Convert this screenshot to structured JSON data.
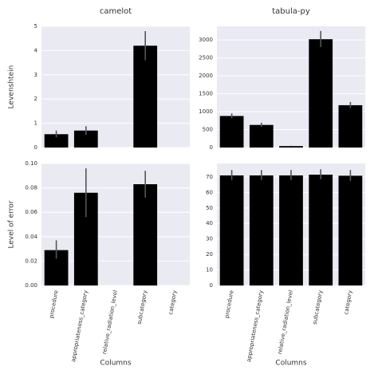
{
  "chart_data": [
    {
      "type": "bar",
      "title": "camelot",
      "ylabel": "Levenshtein",
      "values": [
        0.55,
        0.7,
        null,
        4.2,
        null
      ],
      "error_low": [
        0.42,
        0.52,
        null,
        3.6,
        null
      ],
      "error_high": [
        0.7,
        0.88,
        null,
        4.8,
        null
      ],
      "color": "#000000",
      "ylim": [
        0,
        5
      ],
      "yticks": [
        0,
        1,
        2,
        3,
        4,
        5
      ],
      "grid": true
    },
    {
      "type": "bar",
      "title": "tabula-py",
      "values": [
        880,
        630,
        40,
        3020,
        1180
      ],
      "error_low": [
        820,
        580,
        30,
        2800,
        1100
      ],
      "error_high": [
        950,
        690,
        50,
        3250,
        1270
      ],
      "color": "#000000",
      "ylim": [
        0,
        3380
      ],
      "yticks": [
        0,
        500,
        1000,
        1500,
        2000,
        2500,
        3000
      ],
      "grid": true
    },
    {
      "type": "bar",
      "ylabel": "Level of error",
      "xlabel": "Columns",
      "categories": [
        "procedure",
        "appropriateness_category",
        "relative_radiation_level",
        "subcategory",
        "category"
      ],
      "values": [
        0.029,
        0.076,
        null,
        0.083,
        null
      ],
      "error_low": [
        0.022,
        0.056,
        null,
        0.072,
        null
      ],
      "error_high": [
        0.037,
        0.096,
        null,
        0.094,
        null
      ],
      "color": "#000000",
      "ylim": [
        0,
        0.1
      ],
      "yticks": [
        {
          "value": 0,
          "label": "0.00"
        },
        {
          "value": 0.02,
          "label": "0.02"
        },
        {
          "value": 0.04,
          "label": "0.04"
        },
        {
          "value": 0.06,
          "label": "0.06"
        },
        {
          "value": 0.08,
          "label": "0.08"
        },
        {
          "value": 0.1,
          "label": "0.10"
        }
      ],
      "grid": true
    },
    {
      "type": "bar",
      "xlabel": "Columns",
      "categories": [
        "procedure",
        "appropriateness_category",
        "relative_radiation_level",
        "subcategory",
        "category"
      ],
      "values": [
        71,
        71,
        71,
        71.5,
        70.8
      ],
      "error_low": [
        68,
        68,
        68,
        68.5,
        67.5
      ],
      "error_high": [
        74.5,
        74.5,
        74.5,
        75,
        74.5
      ],
      "color": "#000000",
      "ylim": [
        0,
        78.7
      ],
      "yticks": [
        0,
        10,
        20,
        30,
        40,
        50,
        60,
        70
      ],
      "grid": true
    }
  ]
}
